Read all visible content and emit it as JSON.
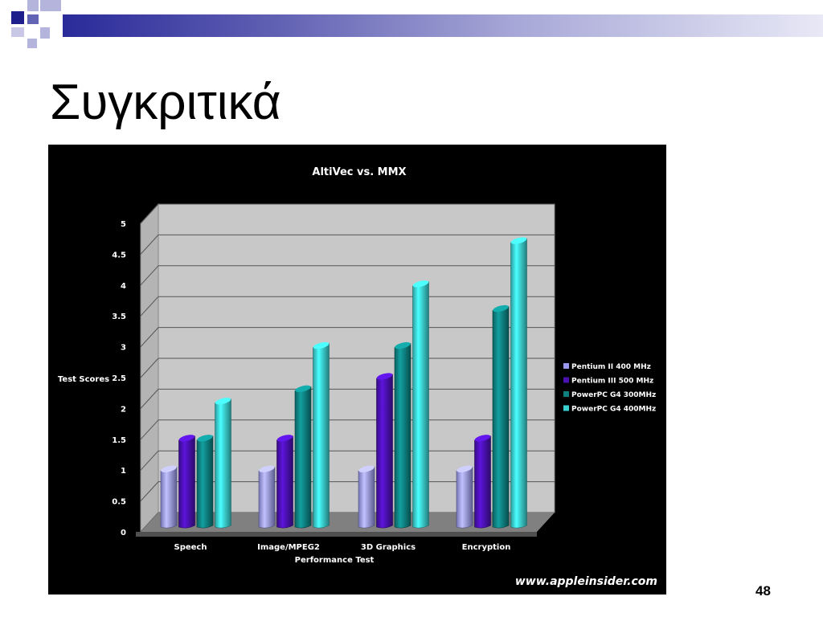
{
  "slide": {
    "title": "Συγκριτικά",
    "page_number": "48"
  },
  "colors": {
    "accent_dark": "#1e1e8c",
    "accent_mid": "#6464b4",
    "accent_light": "#b4b4dc"
  },
  "chart_data": {
    "type": "bar",
    "title": "AltiVec vs. MMX",
    "xlabel": "Performance Test",
    "ylabel": "Test Scores",
    "ylim": [
      0,
      5
    ],
    "yticks": [
      "0",
      "0.5",
      "1",
      "1.5",
      "2",
      "2.5",
      "3",
      "3.5",
      "4",
      "4.5",
      "5"
    ],
    "categories": [
      "Speech",
      "Image/MPEG2",
      "3D Graphics",
      "Encryption"
    ],
    "series": [
      {
        "name": "Pentium II 400 MHz",
        "color": "#9a9af0",
        "values": [
          1.0,
          1.0,
          1.0,
          1.0
        ]
      },
      {
        "name": "Pentium III 500 MHz",
        "color": "#4a10b0",
        "values": [
          1.5,
          1.5,
          2.5,
          1.5
        ]
      },
      {
        "name": "PowerPC G4 300MHz",
        "color": "#0e8080",
        "values": [
          1.5,
          2.3,
          3.0,
          3.6
        ]
      },
      {
        "name": "PowerPC G4 400MHz",
        "color": "#3ad0d0",
        "values": [
          2.1,
          3.0,
          4.0,
          4.7
        ]
      }
    ],
    "legend_position": "right",
    "grid": true,
    "watermark": "www.appleinsider.com"
  }
}
